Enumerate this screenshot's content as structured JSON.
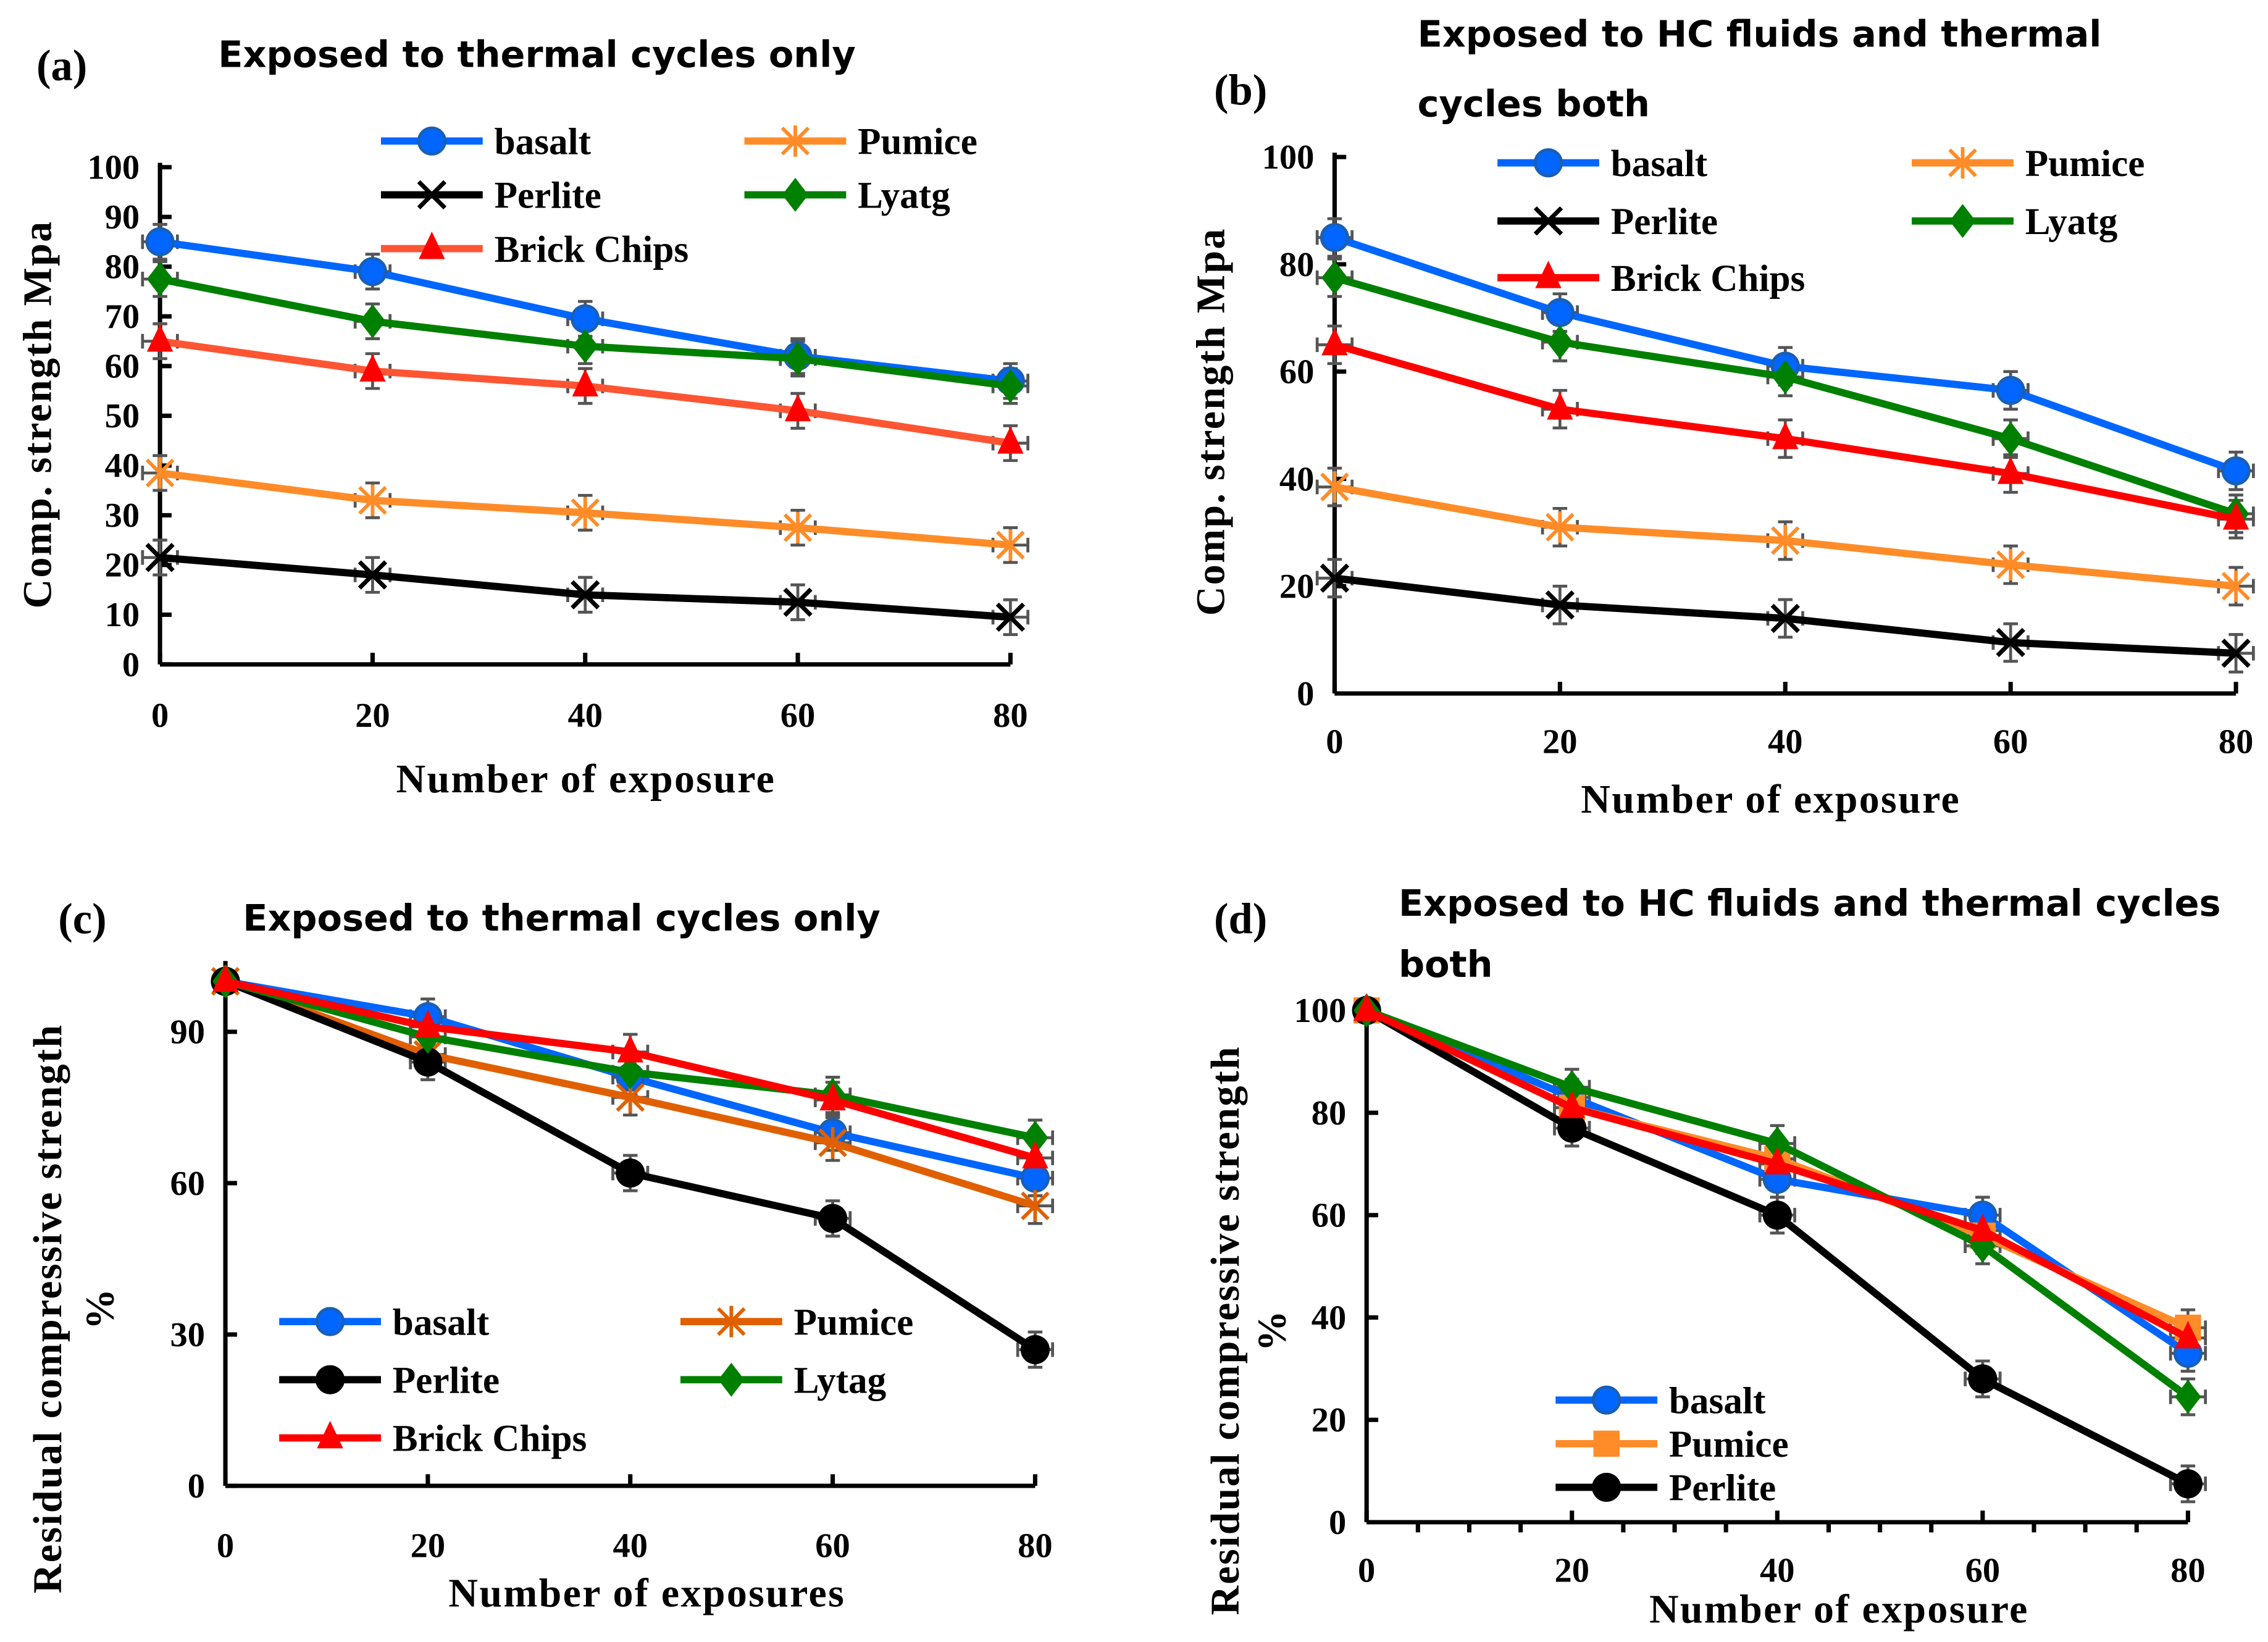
{
  "chart_data": [
    {
      "panel_label": "(a)",
      "type": "line",
      "title": [
        "Exposed to thermal cycles only"
      ],
      "xlabel": "Number of exposure",
      "ylabel": [
        "Comp. strength Mpa"
      ],
      "x": [
        0,
        20,
        40,
        60,
        80
      ],
      "xticks": [
        "0",
        "20",
        "40",
        "60",
        "80"
      ],
      "yticks": [
        "0",
        "10",
        "20",
        "30",
        "40",
        "50",
        "60",
        "70",
        "80",
        "90",
        "100"
      ],
      "ylim": [
        0,
        100
      ],
      "error_bars": true,
      "legend": "top, two columns",
      "series": [
        {
          "name": "basalt",
          "color": "#0066FF",
          "marker": "circle",
          "values": [
            85,
            79,
            69.5,
            62,
            57
          ]
        },
        {
          "name": "Pumice",
          "color": "#FF8C28",
          "marker": "asterisk",
          "values": [
            38.5,
            33,
            30.5,
            27.5,
            24
          ]
        },
        {
          "name": "Perlite",
          "color": "#000000",
          "marker": "x",
          "values": [
            21.5,
            18,
            14,
            12.5,
            9.5
          ]
        },
        {
          "name": "Lyatg",
          "color": "#008000",
          "marker": "diamond",
          "values": [
            77.5,
            69,
            64,
            61.5,
            56
          ]
        },
        {
          "name": "Brick Chips",
          "color": "#FF5533",
          "marker": "triangle",
          "values": [
            65,
            59,
            56,
            51,
            44.5
          ]
        }
      ]
    },
    {
      "panel_label": "(b)",
      "type": "line",
      "title": [
        "Exposed to HC fluids and thermal",
        "cycles both"
      ],
      "xlabel": "Number of exposure",
      "ylabel": [
        "Comp. strength Mpa"
      ],
      "x": [
        0,
        20,
        40,
        60,
        80
      ],
      "xticks": [
        "0",
        "20",
        "40",
        "60",
        "80"
      ],
      "yticks": [
        "0",
        "20",
        "40",
        "60",
        "80",
        "100"
      ],
      "ylim": [
        0,
        100
      ],
      "error_bars": true,
      "legend": "top, two columns",
      "series": [
        {
          "name": "basalt",
          "color": "#0066FF",
          "marker": "circle",
          "values": [
            85,
            71,
            61,
            56.5,
            41.5
          ]
        },
        {
          "name": "Pumice",
          "color": "#FF8C28",
          "marker": "asterisk",
          "values": [
            38.5,
            31,
            28.5,
            24,
            20
          ]
        },
        {
          "name": "Perlite",
          "color": "#000000",
          "marker": "x",
          "values": [
            21.5,
            16.5,
            14,
            9.5,
            7.5
          ]
        },
        {
          "name": "Lyatg",
          "color": "#008000",
          "marker": "diamond",
          "values": [
            77.5,
            65.5,
            59,
            47.5,
            33.5
          ]
        },
        {
          "name": "Brick Chips",
          "color": "#FF0000",
          "marker": "triangle",
          "values": [
            65,
            53,
            47.5,
            41,
            32.5
          ]
        }
      ]
    },
    {
      "panel_label": "(c)",
      "type": "line",
      "title": [
        "Exposed to thermal cycles only"
      ],
      "xlabel": "Number of exposures",
      "ylabel": [
        "Residual compressive strength",
        "%"
      ],
      "x": [
        0,
        20,
        40,
        60,
        80
      ],
      "xticks": [
        "0",
        "20",
        "40",
        "60",
        "80"
      ],
      "yticks": [
        "0",
        "30",
        "60",
        "90"
      ],
      "ylim": [
        0,
        104
      ],
      "error_bars": true,
      "legend": "bottom-left, two columns",
      "series": [
        {
          "name": "basalt",
          "color": "#0066FF",
          "marker": "circle",
          "values": [
            100,
            93,
            81,
            70,
            61
          ]
        },
        {
          "name": "Pumice",
          "color": "#E06000",
          "marker": "asterisk",
          "values": [
            100,
            85.5,
            77,
            68,
            55.5
          ]
        },
        {
          "name": "Perlite",
          "color": "#000000",
          "marker": "circle",
          "values": [
            100,
            84,
            62,
            53,
            27
          ]
        },
        {
          "name": "Lytag",
          "color": "#008000",
          "marker": "diamond",
          "values": [
            100,
            89,
            82,
            77.5,
            69
          ]
        },
        {
          "name": "Brick Chips",
          "color": "#FF0000",
          "marker": "triangle",
          "values": [
            100,
            91,
            86,
            76.5,
            65
          ]
        }
      ]
    },
    {
      "panel_label": "(d)",
      "type": "line",
      "title": [
        "Exposed to HC fluids and thermal cycles",
        "both"
      ],
      "xlabel": "Number of exposure",
      "ylabel": [
        "Residual compressive strength",
        "%"
      ],
      "x": [
        0,
        20,
        40,
        60,
        80
      ],
      "xticks": [
        "0",
        "20",
        "40",
        "60",
        "80"
      ],
      "yticks": [
        "0",
        "20",
        "40",
        "60",
        "80",
        "100"
      ],
      "ylim": [
        0,
        100
      ],
      "error_bars": true,
      "legend": "bottom-left, one column",
      "series": [
        {
          "name": "basalt",
          "color": "#0066FF",
          "marker": "circle",
          "values": [
            100,
            83,
            67,
            60,
            33
          ],
          "in_legend": true
        },
        {
          "name": "Pumice",
          "color": "#FF8C28",
          "marker": "square",
          "values": [
            100,
            81,
            71,
            56,
            38
          ],
          "in_legend": true
        },
        {
          "name": "Perlite",
          "color": "#000000",
          "marker": "circle",
          "values": [
            100,
            77,
            60,
            28,
            7.5
          ],
          "in_legend": true
        },
        {
          "color": "#008000",
          "marker": "diamond",
          "values": [
            100,
            85,
            74,
            54,
            24.5
          ],
          "in_legend": false
        },
        {
          "color": "#FF0000",
          "marker": "triangle",
          "values": [
            100,
            81,
            70,
            57,
            36
          ],
          "in_legend": false
        }
      ]
    }
  ]
}
